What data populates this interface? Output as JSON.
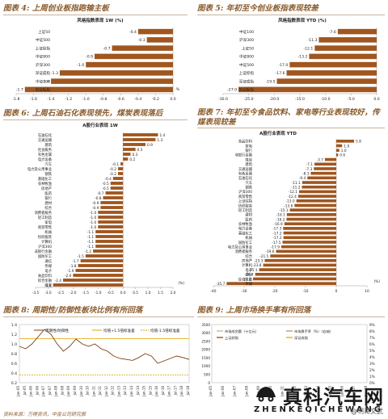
{
  "colors": {
    "bar": "#a0561e",
    "title": "#8a5a2b",
    "line_main": "#7a3f12",
    "line_ref": "#e0a100"
  },
  "footer": {
    "source": "资料来源：万得资讯，中金公司研究部"
  },
  "watermark": {
    "title": "真科汽车网",
    "subtitle": "ZHENKEQICHEWANG",
    "tag": "@明哥文武"
  },
  "panels": [
    {
      "title": "图表 4: 上周创业板指跑输主板",
      "chart_data": {
        "type": "bar",
        "orientation": "horizontal",
        "title": "风格指数表现 1W (%)",
        "categories": [
          "上证50",
          "中证500",
          "上证综指",
          "中证800",
          "沪深300",
          "深证成指",
          "中证100",
          "创业板指"
        ],
        "values": [
          -0.4,
          -0.3,
          -0.7,
          -0.9,
          -1.0,
          -1.3,
          -1.4,
          -1.7
        ],
        "labels": [
          "-0.4",
          "-0.3",
          "-0.7",
          "-0.9",
          "-1.0",
          "-1.3",
          "-1.4",
          "-1.7"
        ],
        "xlim": [
          -1.8,
          0.0
        ],
        "ticks": [
          -1.8,
          -1.6,
          -1.4,
          -1.2,
          -1.0,
          -0.8,
          -0.6,
          -0.4,
          -0.2,
          0.0
        ],
        "tick_labels": [
          "-1.8",
          "-1.6",
          "-1.4",
          "-1.2",
          "-1.0",
          "-0.8",
          "-0.6",
          "-0.4",
          "-0.2",
          "0.0"
        ],
        "unit": "%"
      }
    },
    {
      "title": "图表 5: 年初至今创业板指表现较差",
      "chart_data": {
        "type": "bar",
        "orientation": "horizontal",
        "title": "风格指数表现 YTD (%)",
        "categories": [
          "中证100",
          "沪深300",
          "上证50",
          "中证800",
          "中证500",
          "上证综指",
          "深证成指",
          "创业板指"
        ],
        "values": [
          -7.6,
          -11.3,
          -12.1,
          -13.2,
          -17.0,
          -17.6,
          -19.5,
          -27.0
        ],
        "labels": [
          "-7.6",
          "-11.3",
          "-12.1",
          "-13.2",
          "-17.0",
          "-17.6",
          "-19.5",
          "-27.0"
        ],
        "xlim": [
          -30,
          0
        ],
        "ticks": [
          -30,
          -25,
          -20,
          -15,
          -10,
          -5,
          0
        ],
        "tick_labels": [
          "-30.0",
          "-25.0",
          "-20.0",
          "-15.0",
          "-10.0",
          "-5.0",
          "0.0"
        ],
        "unit": ""
      }
    },
    {
      "title": "图表 6: 上周石油石化表现领先，煤炭表现落后",
      "chart_data": {
        "type": "bar",
        "orientation": "horizontal",
        "title": "A股行业表现 1W",
        "categories": [
          "石油石化",
          "交通运输",
          "建筑",
          "社会服务",
          "有色金属",
          "电力设备",
          "汽车",
          "电力及公用事业",
          "钢铁",
          "基础化工",
          "农林牧渔",
          "房地产",
          "医药",
          "银行",
          "建材",
          "综合",
          "消费者服务",
          "轻工制造",
          "家电",
          "商贸零售",
          "机械",
          "纺织服装",
          "计算机",
          "沪深300",
          "非银行金融",
          "国防军工",
          "通信",
          "传媒",
          "电子",
          "食品饮料",
          "综合金融",
          "煤炭"
        ],
        "values": [
          1.4,
          1.3,
          0.9,
          0.5,
          0.3,
          0.2,
          -0.1,
          -0.2,
          -0.2,
          -0.4,
          -0.5,
          -0.5,
          -0.7,
          -0.8,
          -0.9,
          -0.9,
          -1.0,
          -1.0,
          -1.0,
          -1.0,
          -1.1,
          -1.1,
          -1.1,
          -1.1,
          -1.2,
          -1.5,
          -1.7,
          -1.8,
          -1.9,
          -2.0,
          -2.4,
          -2.8
        ],
        "labels": [
          "1.4",
          "1.3",
          "0.9",
          "0.5",
          "0.3",
          "0.2",
          "-0.1",
          "-0.2",
          "-0.2",
          "-0.4",
          "-0.5",
          "-0.5",
          "-0.7",
          "-0.8",
          "-0.9",
          "-0.9",
          "-1.0",
          "-1.0",
          "-1.0",
          "-1.0",
          "-1.1",
          "-1.1",
          "-1.1",
          "-1.1",
          "-1.2",
          "-1.5",
          "-1.7",
          "-1.8",
          "-1.9",
          "-2.0",
          "-2.4",
          "-2.8"
        ],
        "xlim": [
          -3.5,
          2.0
        ],
        "ticks": [
          -3.5,
          -3.0,
          -2.5,
          -2.0,
          -1.5,
          -1.0,
          -0.5,
          0.0,
          0.5,
          1.0,
          1.5,
          2.0
        ],
        "tick_labels": [
          "-3.5",
          "-3.0",
          "-2.5",
          "-2.0",
          "-1.5",
          "-1.0",
          "-0.5",
          "0.0",
          "0.5",
          "1.0",
          "1.5",
          "2.0"
        ],
        "unit": "(%)"
      }
    },
    {
      "title": "图表 7: 年初至今食品饮料、家电等行业表现较好，传媒表现较差",
      "chart_data": {
        "type": "bar",
        "orientation": "horizontal",
        "title": "A股行业表现 YTD",
        "categories": [
          "食品饮料",
          "家电",
          "银行",
          "非银行金融",
          "煤炭",
          "建筑",
          "交通运输",
          "有色金属",
          "石油石化",
          "汽车",
          "钢铁",
          "沪深300",
          "商贸零售",
          "上证综指",
          "纺织服装",
          "轻工制造",
          "建材",
          "医药",
          "农林牧渔",
          "电力设备",
          "基础化工",
          "机械",
          "国防军工",
          "电力及公用事业",
          "消费者服务",
          "综合",
          "房地产",
          "计算机",
          "电子",
          "通信",
          "综合金融",
          "传媒"
        ],
        "values": [
          5.8,
          1.9,
          1.0,
          0.6,
          -3.7,
          -7.1,
          -7.3,
          -8.3,
          -9.4,
          -11.1,
          -11.2,
          -12.1,
          -12.4,
          -13.0,
          -13.6,
          -15.1,
          -16.1,
          -16.2,
          -16.9,
          -17.3,
          -17.2,
          -17.2,
          -17.5,
          -17.9,
          -19.6,
          -21.5,
          -23.3,
          -23.8,
          -25.1,
          -26.4,
          -27.1,
          -35.7
        ],
        "labels": [
          "5.8",
          "1.9",
          "1.0",
          "0.6",
          "-3.7",
          "-7.1",
          "-7.3",
          "-8.3",
          "-9.4",
          "-11.1",
          "-11.2",
          "-12.1",
          "-12.4",
          "-13.0",
          "-13.6",
          "-15.1",
          "-16.1",
          "-16.2",
          "-16.9",
          "-17.3",
          "-17.2",
          "-17.2",
          "-17.5",
          "-17.9",
          "-19.6",
          "-21.5",
          "-23.3",
          "-23.8",
          "-25.1",
          "-26.4",
          "-27.1",
          "-35.7"
        ],
        "xlim": [
          -40,
          10
        ],
        "ticks": [
          -40,
          -30,
          -20,
          -10,
          0,
          10
        ],
        "tick_labels": [
          "-40",
          "-30",
          "-20",
          "-10",
          "0",
          "10"
        ],
        "unit": "(%)"
      }
    },
    {
      "title": "图表 8: 周期性/防御性板块比例有所回落",
      "chart_data": {
        "type": "line",
        "legend": [
          "周期性/防御性",
          "均值+1.5倍标准差",
          "均值-1.5倍标准差"
        ],
        "ylim": [
          0.2,
          1.4
        ],
        "ticks": [
          0.2,
          0.4,
          0.6,
          0.8,
          1.0,
          1.2,
          1.4
        ],
        "tick_labels": [
          "0.2",
          "0.4",
          "0.6",
          "0.8",
          "1.0",
          "1.2",
          "1.4"
        ],
        "ref_upper": 1.11,
        "ref_lower": 0.36,
        "x": [
          "Jan-05",
          "Jul-05",
          "Jan-06",
          "Jul-06",
          "Jan-07",
          "Jul-07",
          "Jan-08",
          "Jul-08",
          "Jan-09",
          "Jul-09",
          "Jan-10",
          "Jul-10",
          "Jan-11",
          "Jul-11",
          "Jan-12",
          "Jul-12",
          "Jan-13",
          "Jul-13",
          "Jan-14",
          "Jul-14",
          "Jan-15",
          "Jul-15",
          "Jan-16",
          "Jul-16",
          "Jan-17",
          "Jul-17",
          "Jan-18",
          "Jul-18"
        ],
        "values": [
          0.95,
          0.9,
          1.0,
          1.15,
          1.3,
          1.2,
          1.0,
          0.85,
          0.95,
          1.1,
          1.0,
          0.95,
          1.0,
          0.9,
          0.85,
          0.75,
          0.7,
          0.68,
          0.66,
          0.72,
          0.8,
          0.75,
          0.6,
          0.65,
          0.7,
          0.75,
          0.72,
          0.68
        ]
      }
    },
    {
      "title": "图表 9: 上周市场换手率有所回落",
      "chart_data": {
        "type": "line",
        "legend": [
          "市场成交额（十亿元）",
          "上证综指",
          "市场换手率（%）（右轴）",
          "深证成指"
        ],
        "ylim": [
          0,
          3500
        ],
        "y2lim": [
          0,
          9
        ],
        "ticks_right": [
          0,
          1,
          2,
          3,
          4,
          5,
          6,
          7,
          8,
          9
        ],
        "tick_labels_right": [
          "0%",
          "1%",
          "2%",
          "3%",
          "4%",
          "5%",
          "6%",
          "7%",
          "8%",
          "9%"
        ],
        "tick_labels_left": [
          "3500",
          "3000",
          "2500",
          "2000",
          "1500",
          "1000",
          "500",
          "0"
        ],
        "x": [
          "Jan-05",
          "Jan-06",
          "Jan-07",
          "Jan-08",
          "Jan-09",
          "Jan-10",
          "Jan-11",
          "Jan-12",
          "Jan-13",
          "Jan-14",
          "Jan-15",
          "Jan-16",
          "Jan-17",
          "Jan-18"
        ]
      }
    }
  ]
}
